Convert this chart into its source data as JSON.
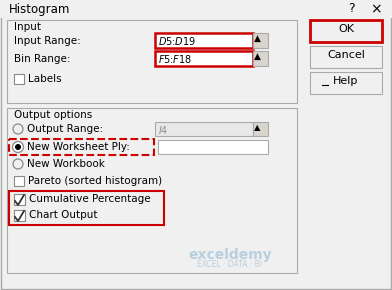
{
  "title": "Histogram",
  "bg_color": "#f0f0f0",
  "input_section_label": "Input",
  "input_range_label": "Input Range:",
  "input_range_value": "$D$5:$D$19",
  "bin_range_label": "Bin Range:",
  "bin_range_value": "$F$5:$F$18",
  "labels_label": "Labels",
  "output_section_label": "Output options",
  "output_range_label": "Output Range:",
  "output_range_value": "$I$4",
  "new_worksheet_label": "New Worksheet Ply:",
  "new_workbook_label": "New Workbook",
  "pareto_label": "Pareto (sorted histogram)",
  "cumulative_label": "Cumulative Percentage",
  "chart_label": "Chart Output",
  "ok_btn": "OK",
  "cancel_btn": "Cancel",
  "help_btn": "Help",
  "red_border": "#cc0000",
  "white": "#ffffff",
  "light_gray": "#d4d0c8",
  "mid_gray": "#c0c0c0",
  "text_color": "#000000",
  "gray_text": "#a8a8a8",
  "watermark_color": "#b8cfe0",
  "watermark_sub_color": "#b8cfe0"
}
